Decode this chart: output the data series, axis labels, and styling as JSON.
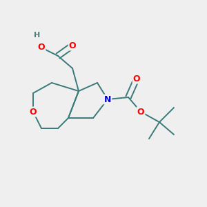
{
  "background_color": "#efefef",
  "bond_color": "#3a7a78",
  "atom_colors": {
    "O": "#ff0000",
    "N": "#0000dd",
    "H": "#4a8080",
    "C": "#3a7a78"
  },
  "figsize": [
    3.0,
    3.0
  ],
  "dpi": 100
}
